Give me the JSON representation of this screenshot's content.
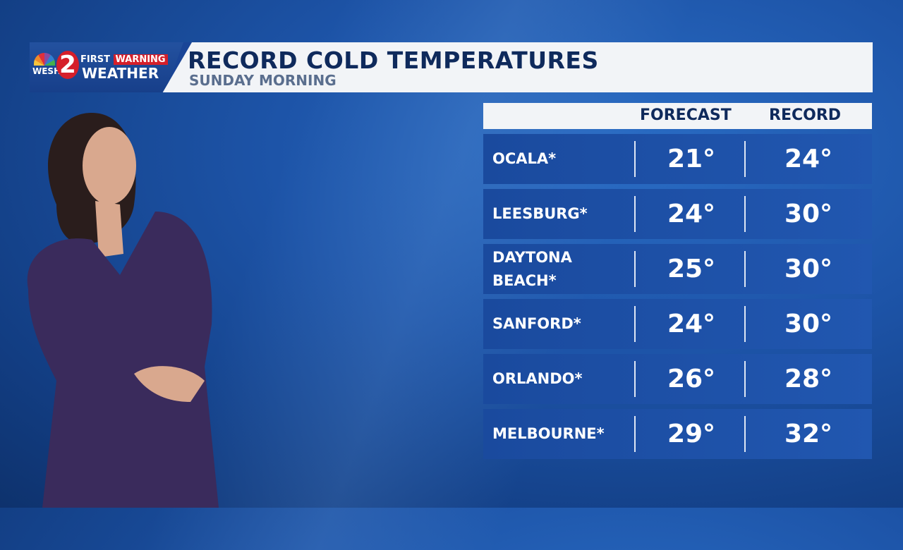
{
  "brand": {
    "station": "WESH",
    "channel": "2",
    "line1a": "FIRST",
    "line1b": "WARNING",
    "line2": "WEATHER",
    "colors": {
      "blue": "#1a4597",
      "red": "#d51f2a"
    }
  },
  "header": {
    "title": "RECORD COLD TEMPERATURES",
    "subtitle": "SUNDAY MORNING"
  },
  "table": {
    "columns": [
      "FORECAST",
      "RECORD"
    ],
    "rows": [
      {
        "city": "OCALA*",
        "forecast": "21°",
        "record": "24°"
      },
      {
        "city": "LEESBURG*",
        "forecast": "24°",
        "record": "30°"
      },
      {
        "city": "DAYTONA\nBEACH*",
        "forecast": "25°",
        "record": "30°"
      },
      {
        "city": "SANFORD*",
        "forecast": "24°",
        "record": "30°"
      },
      {
        "city": "ORLANDO*",
        "forecast": "26°",
        "record": "28°"
      },
      {
        "city": "MELBOURNE*",
        "forecast": "29°",
        "record": "32°"
      }
    ]
  }
}
